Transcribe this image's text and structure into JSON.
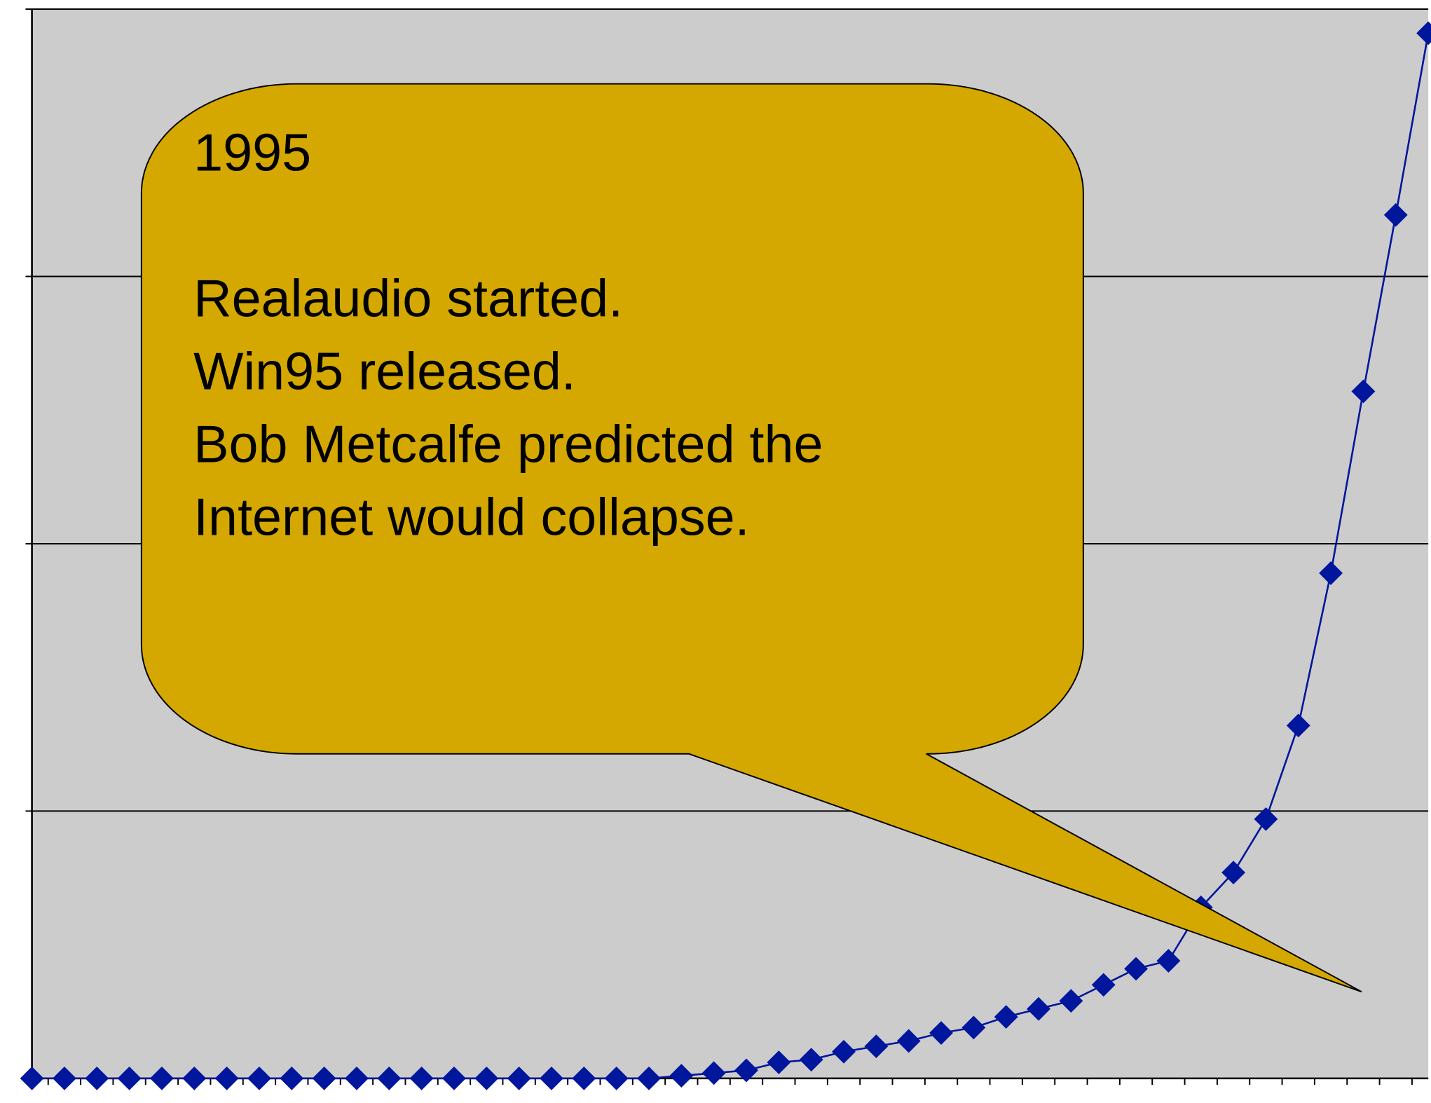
{
  "chart_data": {
    "type": "line",
    "categories": [
      null,
      null,
      null,
      null,
      null,
      null,
      null,
      null,
      null,
      null,
      null,
      null,
      null,
      null,
      null,
      null,
      null,
      null,
      null,
      null,
      null,
      null,
      null,
      null,
      null,
      null,
      null,
      null,
      null,
      null,
      null,
      null,
      null,
      null,
      null,
      null,
      null,
      null,
      null,
      null,
      null,
      null,
      null,
      null
    ],
    "series": [
      {
        "color": "#00169c",
        "values": [
          0,
          0,
          0,
          0,
          0,
          0,
          0,
          0,
          0,
          0,
          0,
          0,
          0,
          0,
          0,
          0,
          0,
          0,
          0,
          0,
          0.01,
          0.02,
          0.03,
          0.06,
          0.07,
          0.1,
          0.12,
          0.14,
          0.17,
          0.19,
          0.23,
          0.26,
          0.29,
          0.35,
          0.41,
          0.44,
          0.64,
          0.77,
          0.97,
          1.32,
          1.89,
          2.57,
          3.23,
          3.91
        ]
      }
    ],
    "ylim": [
      0,
      4
    ],
    "yticks": [
      0,
      1,
      2,
      3,
      4
    ],
    "grid": true,
    "annotation": {
      "title": "1995",
      "lines": [
        "Realaudio started.",
        "Win95 released.",
        "Bob Metcalfe predicted the",
        "Internet would collapse."
      ],
      "color": "#d4a800"
    }
  }
}
